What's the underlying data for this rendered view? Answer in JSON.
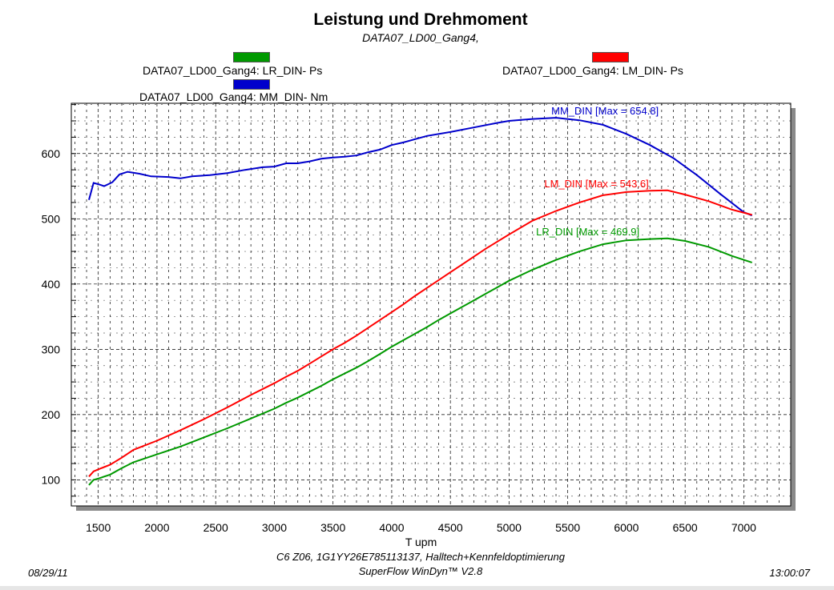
{
  "header": {
    "title": "Leistung und Drehmoment",
    "subtitle": "DATA07_LD00_Gang4,"
  },
  "legend": {
    "lr": {
      "label": "DATA07_LD00_Gang4: LR_DIN-  Ps",
      "color": "#009900"
    },
    "lm": {
      "label": "DATA07_LD00_Gang4: LM_DIN-  Ps",
      "color": "#ff0000"
    },
    "mm": {
      "label": "DATA07_LD00_Gang4: MM_DIN-  Nm",
      "color": "#0000cc"
    }
  },
  "footer": {
    "line1": "C6 Z06, 1G1YY26E785113137, Halltech+Kennfeldoptimierung",
    "line2": "SuperFlow WinDyn™  V2.8",
    "date": "08/29/11",
    "time": "13:00:07"
  },
  "chart_data": {
    "type": "line",
    "xlabel": "T    upm",
    "ylabel": "",
    "xlim": [
      1270,
      7400
    ],
    "ylim": [
      60,
      677
    ],
    "x_ticks": [
      1500,
      2000,
      2500,
      3000,
      3500,
      4000,
      4500,
      5000,
      5500,
      6000,
      6500,
      7000
    ],
    "y_ticks": [
      100,
      200,
      300,
      400,
      500,
      600
    ],
    "grid": true,
    "series": [
      {
        "name": "MM_DIN",
        "key": "mm",
        "color": "#0000cc",
        "annotation": "MM_DIN [Max = 654.8]",
        "points": [
          [
            1420,
            529
          ],
          [
            1460,
            555
          ],
          [
            1500,
            553
          ],
          [
            1550,
            550
          ],
          [
            1620,
            556
          ],
          [
            1680,
            568
          ],
          [
            1750,
            572
          ],
          [
            1850,
            569
          ],
          [
            1950,
            565
          ],
          [
            2100,
            564
          ],
          [
            2200,
            562
          ],
          [
            2300,
            565
          ],
          [
            2450,
            567
          ],
          [
            2600,
            570
          ],
          [
            2750,
            575
          ],
          [
            2900,
            579
          ],
          [
            3000,
            580
          ],
          [
            3100,
            585
          ],
          [
            3200,
            585
          ],
          [
            3300,
            588
          ],
          [
            3400,
            592
          ],
          [
            3500,
            594
          ],
          [
            3600,
            595
          ],
          [
            3700,
            597
          ],
          [
            3800,
            602
          ],
          [
            3900,
            606
          ],
          [
            4000,
            613
          ],
          [
            4100,
            617
          ],
          [
            4200,
            622
          ],
          [
            4300,
            627
          ],
          [
            4500,
            633
          ],
          [
            4700,
            640
          ],
          [
            4900,
            647
          ],
          [
            5000,
            650
          ],
          [
            5200,
            653
          ],
          [
            5400,
            654.8
          ],
          [
            5600,
            651
          ],
          [
            5800,
            644
          ],
          [
            6000,
            630
          ],
          [
            6200,
            613
          ],
          [
            6400,
            593
          ],
          [
            6600,
            567
          ],
          [
            6800,
            538
          ],
          [
            7000,
            510
          ],
          [
            7070,
            505
          ]
        ]
      },
      {
        "name": "LM_DIN",
        "key": "lm",
        "color": "#ff0000",
        "annotation": "LM_DIN [Max = 543.6]",
        "points": [
          [
            1420,
            105
          ],
          [
            1460,
            113
          ],
          [
            1500,
            116
          ],
          [
            1600,
            123
          ],
          [
            1700,
            134
          ],
          [
            1800,
            146
          ],
          [
            2000,
            160
          ],
          [
            2200,
            176
          ],
          [
            2400,
            193
          ],
          [
            2600,
            211
          ],
          [
            2800,
            230
          ],
          [
            3000,
            248
          ],
          [
            3100,
            258
          ],
          [
            3200,
            267
          ],
          [
            3300,
            278
          ],
          [
            3400,
            289
          ],
          [
            3500,
            300
          ],
          [
            3600,
            310
          ],
          [
            3700,
            321
          ],
          [
            3800,
            333
          ],
          [
            3900,
            345
          ],
          [
            4000,
            357
          ],
          [
            4100,
            369
          ],
          [
            4200,
            382
          ],
          [
            4300,
            394
          ],
          [
            4400,
            406
          ],
          [
            4500,
            418
          ],
          [
            4600,
            430
          ],
          [
            4700,
            442
          ],
          [
            4800,
            454
          ],
          [
            4900,
            465
          ],
          [
            5000,
            476
          ],
          [
            5200,
            497
          ],
          [
            5400,
            512
          ],
          [
            5600,
            525
          ],
          [
            5800,
            536
          ],
          [
            6000,
            541
          ],
          [
            6200,
            543
          ],
          [
            6350,
            543.6
          ],
          [
            6500,
            537
          ],
          [
            6700,
            527
          ],
          [
            6900,
            514
          ],
          [
            7070,
            506
          ]
        ]
      },
      {
        "name": "LR_DIN",
        "key": "lr",
        "color": "#009900",
        "annotation": "LR_DIN [Max = 469.9]",
        "points": [
          [
            1420,
            92
          ],
          [
            1460,
            100
          ],
          [
            1500,
            102
          ],
          [
            1600,
            108
          ],
          [
            1700,
            118
          ],
          [
            1800,
            127
          ],
          [
            2000,
            139
          ],
          [
            2200,
            151
          ],
          [
            2400,
            165
          ],
          [
            2600,
            179
          ],
          [
            2800,
            194
          ],
          [
            3000,
            209
          ],
          [
            3100,
            218
          ],
          [
            3200,
            226
          ],
          [
            3300,
            235
          ],
          [
            3400,
            244
          ],
          [
            3500,
            254
          ],
          [
            3600,
            263
          ],
          [
            3700,
            272
          ],
          [
            3800,
            282
          ],
          [
            3900,
            293
          ],
          [
            4000,
            304
          ],
          [
            4100,
            314
          ],
          [
            4200,
            324
          ],
          [
            4300,
            334
          ],
          [
            4400,
            345
          ],
          [
            4500,
            355
          ],
          [
            4600,
            365
          ],
          [
            4700,
            375
          ],
          [
            4800,
            385
          ],
          [
            4900,
            395
          ],
          [
            5000,
            405
          ],
          [
            5200,
            422
          ],
          [
            5400,
            437
          ],
          [
            5600,
            450
          ],
          [
            5800,
            461
          ],
          [
            6000,
            467
          ],
          [
            6200,
            469
          ],
          [
            6350,
            469.9
          ],
          [
            6500,
            466
          ],
          [
            6700,
            457
          ],
          [
            6900,
            443
          ],
          [
            7070,
            433
          ]
        ]
      }
    ]
  }
}
